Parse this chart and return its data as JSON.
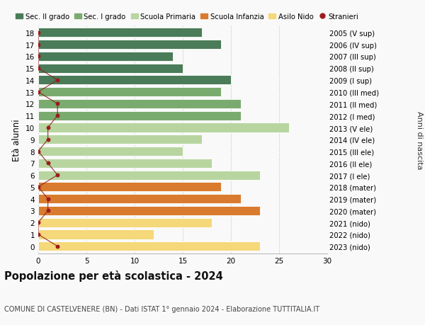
{
  "ages": [
    18,
    17,
    16,
    15,
    14,
    13,
    12,
    11,
    10,
    9,
    8,
    7,
    6,
    5,
    4,
    3,
    2,
    1,
    0
  ],
  "right_labels": [
    "2005 (V sup)",
    "2006 (IV sup)",
    "2007 (III sup)",
    "2008 (II sup)",
    "2009 (I sup)",
    "2010 (III med)",
    "2011 (II med)",
    "2012 (I med)",
    "2013 (V ele)",
    "2014 (IV ele)",
    "2015 (III ele)",
    "2016 (II ele)",
    "2017 (I ele)",
    "2018 (mater)",
    "2019 (mater)",
    "2020 (mater)",
    "2021 (nido)",
    "2022 (nido)",
    "2023 (nido)"
  ],
  "bar_values": [
    17,
    19,
    14,
    15,
    20,
    19,
    21,
    21,
    26,
    17,
    15,
    18,
    23,
    19,
    21,
    23,
    18,
    12,
    23
  ],
  "bar_colors": [
    "#4a7c59",
    "#4a7c59",
    "#4a7c59",
    "#4a7c59",
    "#4a7c59",
    "#7aab6e",
    "#7aab6e",
    "#7aab6e",
    "#b8d5a0",
    "#b8d5a0",
    "#b8d5a0",
    "#b8d5a0",
    "#b8d5a0",
    "#d97b2e",
    "#d97b2e",
    "#d97b2e",
    "#f5d87a",
    "#f5d87a",
    "#f5d87a"
  ],
  "stranieri_values": [
    0,
    0,
    0,
    0,
    2,
    0,
    2,
    2,
    1,
    1,
    0,
    1,
    2,
    0,
    1,
    1,
    0,
    0,
    2
  ],
  "legend_labels": [
    "Sec. II grado",
    "Sec. I grado",
    "Scuola Primaria",
    "Scuola Infanzia",
    "Asilo Nido",
    "Stranieri"
  ],
  "legend_colors": [
    "#4a7c59",
    "#7aab6e",
    "#b8d5a0",
    "#d97b2e",
    "#f5d87a",
    "#9b1c1c"
  ],
  "ylabel": "Età alunni",
  "right_ylabel": "Anni di nascita",
  "title": "Popolazione per età scolastica - 2024",
  "subtitle": "COMUNE DI CASTELVENERE (BN) - Dati ISTAT 1° gennaio 2024 - Elaborazione TUTTITALIA.IT",
  "xlim": [
    0,
    30
  ],
  "xticks": [
    0,
    5,
    10,
    15,
    20,
    25,
    30
  ],
  "bg_color": "#f9f9f9",
  "stranieri_line_color": "#8b1a1a",
  "stranieri_dot_color": "#9b1c1c"
}
